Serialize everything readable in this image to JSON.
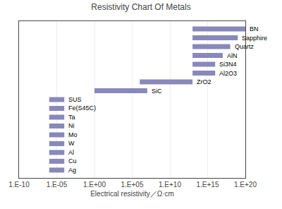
{
  "chart_data": {
    "type": "bar",
    "orientation": "horizontal",
    "title": "Resistivity Chart Of Metals",
    "xlabel": "Electrical resistivity／Ω·cm",
    "categories": [
      "BN",
      "Sapphire",
      "Quartz",
      "AlN",
      "Si3N4",
      "Al2O3",
      "ZrO2",
      "SiC",
      "SUS",
      "Fe(S45C)",
      "Ta",
      "Ni",
      "Mo",
      "W",
      "Al",
      "Cu",
      "Ag"
    ],
    "low": [
      13,
      13,
      13,
      13,
      13,
      13,
      6,
      0,
      -6,
      -6,
      -6,
      -6,
      -6,
      -6,
      -6,
      -6,
      -6
    ],
    "high": [
      20,
      19,
      18,
      17,
      16,
      16,
      13,
      7,
      -4,
      -4,
      -4,
      -4,
      -4,
      -4,
      -4,
      -4,
      -4
    ],
    "color": "#8888bb",
    "xlim": [
      -10,
      20
    ],
    "xticks": [
      {
        "value": -10,
        "label": "1.E-10"
      },
      {
        "value": -5,
        "label": "1.E-05"
      },
      {
        "value": 0,
        "label": "1.E+00"
      },
      {
        "value": 5,
        "label": "1.E+05"
      },
      {
        "value": 10,
        "label": "1.E+10"
      },
      {
        "value": 15,
        "label": "1.E+15"
      },
      {
        "value": 20,
        "label": "1.E+20"
      }
    ],
    "grid": true,
    "tick_labels": "x"
  }
}
